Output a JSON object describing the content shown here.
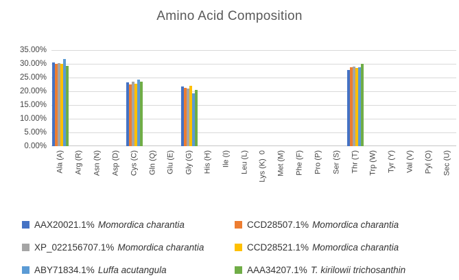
{
  "chart_data": {
    "type": "bar",
    "title": "Amino Acid Composition",
    "title_color": "#595959",
    "categories": [
      "Ala (A)",
      "Arg (R)",
      "Asn (N)",
      "Asp (D)",
      "Cys (C)",
      "Gln (Q)",
      "Glu (E)",
      "Gly (G)",
      "His (H)",
      "Ile (I)",
      "Leu (L)",
      "Lys (K)  0",
      "Met (M)",
      "Phe (F)",
      "Pro (P)",
      "Ser (S)",
      "Thr (T)",
      "Trp (W)",
      "Tyr (Y)",
      "Val (V)",
      "Pyl (O)",
      "Sec (U)"
    ],
    "xlabel": "",
    "ylabel": "",
    "ylim": [
      0,
      35
    ],
    "ytick_step": 5,
    "yticks": [
      "0.00%",
      "5.00%",
      "10.00%",
      "15.00%",
      "20.00%",
      "25.00%",
      "30.00%",
      "35.00%"
    ],
    "grid": true,
    "gridline_color": "#d9d9d9",
    "axis_line_color": "#c6c6c6",
    "axis_text_color": "#444444",
    "legend_position": "bottom",
    "legend_columns": 2,
    "series": [
      {
        "accession": "AAX20021.1%",
        "species": "Momordica charantia",
        "name": "AAX20021.1% Momordica charantia",
        "color": "#4472C4",
        "values": [
          30.4,
          0,
          0,
          0,
          23.2,
          0,
          0,
          21.7,
          0,
          0,
          0,
          0,
          0,
          0,
          0,
          0,
          27.8,
          0,
          0,
          0,
          0,
          0
        ]
      },
      {
        "accession": "CCD28507.1%",
        "species": "Momordica charantia",
        "name": "CCD28507.1% Momordica charantia",
        "color": "#ED7D31",
        "values": [
          30.1,
          0,
          0,
          0,
          22.6,
          0,
          0,
          21.2,
          0,
          0,
          0,
          0,
          0,
          0,
          0,
          0,
          28.7,
          0,
          0,
          0,
          0,
          0
        ]
      },
      {
        "accession": "XP_022156707.1%",
        "species": "Momordica charantia",
        "name": "XP_022156707.1% Momordica charantia",
        "color": "#A5A5A5",
        "values": [
          30.3,
          0,
          0,
          0,
          23.6,
          0,
          0,
          21.0,
          0,
          0,
          0,
          0,
          0,
          0,
          0,
          0,
          28.9,
          0,
          0,
          0,
          0,
          0
        ]
      },
      {
        "accession": "CCD28521.1%",
        "species": "Momordica charantia",
        "name": "CCD28521.1% Momordica charantia",
        "color": "#FFC000",
        "values": [
          30.1,
          0,
          0,
          0,
          22.8,
          0,
          0,
          22.1,
          0,
          0,
          0,
          0,
          0,
          0,
          0,
          0,
          28.4,
          0,
          0,
          0,
          0,
          0
        ]
      },
      {
        "accession": "ABY71834.1%",
        "species": "Luffa acutangula",
        "name": "ABY71834.1% Luffa acutangula",
        "color": "#5B9BD5",
        "values": [
          31.7,
          0,
          0,
          0,
          24.2,
          0,
          0,
          19.2,
          0,
          0,
          0,
          0,
          0,
          0,
          0,
          0,
          28.7,
          0,
          0,
          0,
          0,
          0
        ]
      },
      {
        "accession": "AAA34207.1%",
        "species": "T. kirilowii trichosanthin",
        "name": "AAA34207.1% T. kirilowii trichosanthin",
        "color": "#70AD47",
        "values": [
          29.3,
          0,
          0,
          0,
          23.4,
          0,
          0,
          20.6,
          0,
          0,
          0,
          0,
          0,
          0,
          0,
          0,
          30.1,
          0,
          0,
          0,
          0,
          0
        ]
      }
    ]
  }
}
